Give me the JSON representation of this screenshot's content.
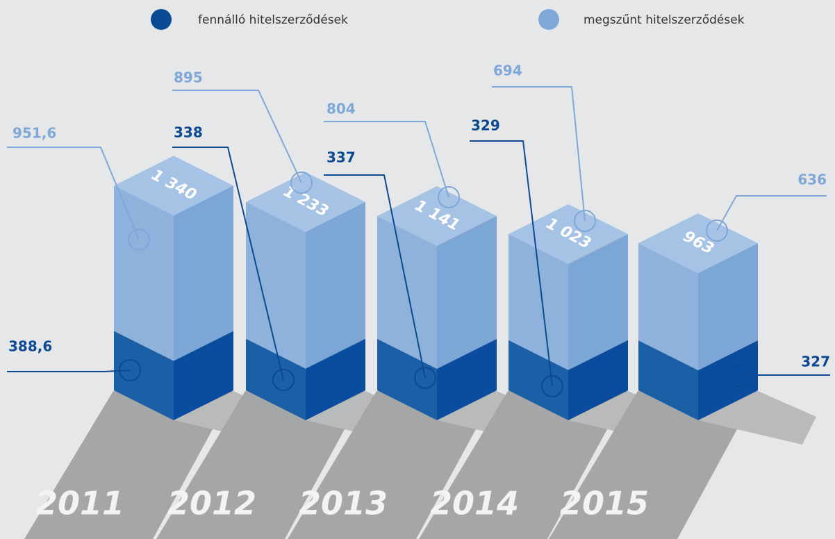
{
  "chart_data": {
    "type": "stacked-bar-3d",
    "categories": [
      "2011",
      "2012",
      "2013",
      "2014",
      "2015"
    ],
    "series": [
      {
        "name": "fennálló hitelszerződések",
        "color": "#0b4a93",
        "values": [
          388.6,
          338,
          337,
          329,
          327
        ],
        "value_labels": [
          "388,6",
          "338",
          "337",
          "329",
          "327"
        ]
      },
      {
        "name": "megszűnt hitelszerződések",
        "color": "#7fa8d8",
        "values": [
          951.6,
          895,
          804,
          694,
          636
        ],
        "value_labels": [
          "951,6",
          "895",
          "804",
          "694",
          "636"
        ]
      }
    ],
    "totals": [
      1340,
      1233,
      1141,
      1023,
      963
    ],
    "total_labels": [
      "1 340",
      "1 233",
      "1 141",
      "1 023",
      "963"
    ]
  }
}
